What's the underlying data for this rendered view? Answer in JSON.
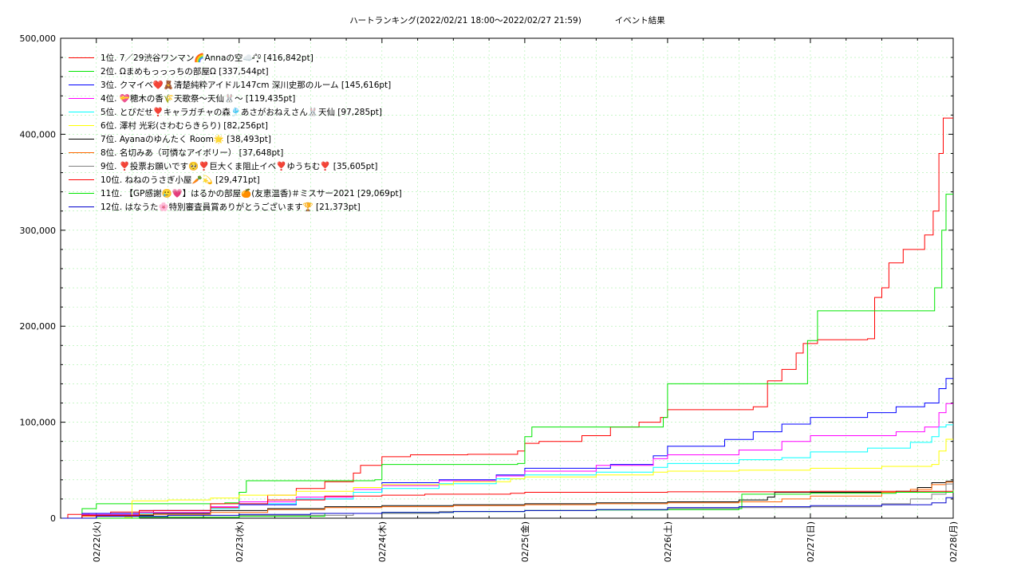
{
  "chart_data": {
    "type": "line",
    "title": "ハートランキング(2022/02/21 18:00〜2022/02/27 21:59)　　　　イベント結果",
    "ylim": [
      0,
      500000
    ],
    "y_ticks": [
      "500,000",
      "400,000",
      "300,000",
      "200,000",
      "100,000",
      "0"
    ],
    "y_tick_values": [
      500000,
      400000,
      300000,
      200000,
      100000,
      0
    ],
    "x_range_days": [
      21.75,
      28.0
    ],
    "x_ticks": [
      {
        "label": "02/22(火)",
        "day": 22
      },
      {
        "label": "02/23(水)",
        "day": 23
      },
      {
        "label": "02/24(木)",
        "day": 24
      },
      {
        "label": "02/25(金)",
        "day": 25
      },
      {
        "label": "02/26(土)",
        "day": 26
      },
      {
        "label": "02/27(日)",
        "day": 27
      },
      {
        "label": "02/28(月)",
        "day": 28
      }
    ],
    "grid": true,
    "legend_position": "top-left",
    "series": [
      {
        "name": "1位. 7／29渋谷ワンマン🌈Annaの空☁️ᵎ̵̵̵̵˚̩̩̥͙⁰̵ [416,842pt]",
        "color": "#ff0000",
        "points": [
          [
            21.76,
            0
          ],
          [
            21.8,
            4000
          ],
          [
            21.95,
            5000
          ],
          [
            22.1,
            6500
          ],
          [
            22.4,
            8000
          ],
          [
            22.8,
            11000
          ],
          [
            23.0,
            17000
          ],
          [
            23.2,
            24000
          ],
          [
            23.4,
            31000
          ],
          [
            23.6,
            38000
          ],
          [
            23.8,
            47000
          ],
          [
            23.85,
            55000
          ],
          [
            24.0,
            64000
          ],
          [
            24.2,
            66000
          ],
          [
            24.6,
            66500
          ],
          [
            24.95,
            70000
          ],
          [
            25.0,
            78000
          ],
          [
            25.1,
            80000
          ],
          [
            25.4,
            86000
          ],
          [
            25.6,
            95000
          ],
          [
            25.8,
            100000
          ],
          [
            25.95,
            105000
          ],
          [
            26.0,
            113000
          ],
          [
            26.6,
            116000
          ],
          [
            26.7,
            143000
          ],
          [
            26.8,
            155000
          ],
          [
            26.9,
            172000
          ],
          [
            26.95,
            182000
          ],
          [
            27.05,
            186000
          ],
          [
            27.4,
            187000
          ],
          [
            27.45,
            230000
          ],
          [
            27.5,
            240000
          ],
          [
            27.55,
            266000
          ],
          [
            27.65,
            280000
          ],
          [
            27.8,
            295000
          ],
          [
            27.86,
            320000
          ],
          [
            27.9,
            380000
          ],
          [
            27.93,
            416842
          ],
          [
            28.0,
            416842
          ]
        ]
      },
      {
        "name": "2位. Ωまめもっっっちの部屋Ω [337,544pt]",
        "color": "#00e600",
        "points": [
          [
            21.76,
            0
          ],
          [
            21.9,
            10000
          ],
          [
            22.0,
            15000
          ],
          [
            22.9,
            16000
          ],
          [
            23.0,
            27000
          ],
          [
            23.05,
            39000
          ],
          [
            23.4,
            39000
          ],
          [
            23.95,
            40000
          ],
          [
            24.0,
            56000
          ],
          [
            24.95,
            57000
          ],
          [
            25.0,
            85000
          ],
          [
            25.05,
            95000
          ],
          [
            25.9,
            95000
          ],
          [
            25.97,
            105000
          ],
          [
            26.0,
            140000
          ],
          [
            26.9,
            140000
          ],
          [
            26.98,
            185000
          ],
          [
            27.05,
            216000
          ],
          [
            27.85,
            216000
          ],
          [
            27.87,
            240000
          ],
          [
            27.92,
            300000
          ],
          [
            27.95,
            337544
          ],
          [
            28.0,
            337544
          ]
        ]
      },
      {
        "name": "3位. クマイベ❤️🧸清楚純粋アイドル147cm 深川史那のルーム [145,616pt]",
        "color": "#0000ff",
        "points": [
          [
            21.76,
            0
          ],
          [
            21.9,
            5000
          ],
          [
            22.3,
            8000
          ],
          [
            22.8,
            10000
          ],
          [
            23.0,
            14000
          ],
          [
            23.4,
            20000
          ],
          [
            23.8,
            27000
          ],
          [
            24.0,
            37000
          ],
          [
            24.4,
            40000
          ],
          [
            24.8,
            45000
          ],
          [
            25.0,
            52000
          ],
          [
            25.6,
            56000
          ],
          [
            25.9,
            65000
          ],
          [
            26.0,
            75000
          ],
          [
            26.4,
            82000
          ],
          [
            26.6,
            90000
          ],
          [
            26.8,
            98000
          ],
          [
            27.0,
            105000
          ],
          [
            27.4,
            110000
          ],
          [
            27.6,
            116000
          ],
          [
            27.8,
            120000
          ],
          [
            27.9,
            135000
          ],
          [
            27.95,
            145616
          ],
          [
            28.0,
            145616
          ]
        ]
      },
      {
        "name": "4位. 💝穂木の香🌾天歌祭〜天仙🐰〜 [119,435pt]",
        "color": "#ff00ff",
        "points": [
          [
            21.76,
            0
          ],
          [
            21.9,
            4000
          ],
          [
            22.3,
            6000
          ],
          [
            22.8,
            12000
          ],
          [
            23.0,
            17000
          ],
          [
            23.4,
            22000
          ],
          [
            23.8,
            30000
          ],
          [
            24.0,
            34000
          ],
          [
            24.4,
            39000
          ],
          [
            24.8,
            44000
          ],
          [
            25.0,
            49000
          ],
          [
            25.5,
            55000
          ],
          [
            25.9,
            62000
          ],
          [
            26.0,
            66000
          ],
          [
            26.5,
            71000
          ],
          [
            26.8,
            80000
          ],
          [
            27.0,
            86000
          ],
          [
            27.6,
            90000
          ],
          [
            27.8,
            95000
          ],
          [
            27.9,
            110000
          ],
          [
            27.95,
            119435
          ],
          [
            28.0,
            119435
          ]
        ]
      },
      {
        "name": "5位. とびだせ❣️キャラガチャの森🎐あさがおねえさん🐰天仙 [97,285pt]",
        "color": "#00ffff",
        "points": [
          [
            21.76,
            0
          ],
          [
            21.9,
            3000
          ],
          [
            22.3,
            5000
          ],
          [
            22.8,
            10000
          ],
          [
            23.0,
            15000
          ],
          [
            23.4,
            20000
          ],
          [
            23.8,
            27000
          ],
          [
            24.0,
            31000
          ],
          [
            24.4,
            36000
          ],
          [
            24.8,
            41000
          ],
          [
            25.0,
            45000
          ],
          [
            25.5,
            48000
          ],
          [
            25.9,
            53000
          ],
          [
            26.0,
            57000
          ],
          [
            26.5,
            61000
          ],
          [
            26.8,
            63000
          ],
          [
            27.0,
            69000
          ],
          [
            27.4,
            73000
          ],
          [
            27.7,
            79000
          ],
          [
            27.85,
            85000
          ],
          [
            27.9,
            95000
          ],
          [
            27.95,
            97285
          ],
          [
            28.0,
            97285
          ]
        ]
      },
      {
        "name": "6位. 澤村 光彩(さわむらきらり) [82,256pt]",
        "color": "#ffff00",
        "points": [
          [
            21.76,
            0
          ],
          [
            22.2,
            1000
          ],
          [
            22.25,
            18000
          ],
          [
            22.5,
            19000
          ],
          [
            22.8,
            21000
          ],
          [
            23.0,
            24000
          ],
          [
            23.4,
            28000
          ],
          [
            23.8,
            32000
          ],
          [
            24.0,
            35000
          ],
          [
            24.5,
            38000
          ],
          [
            24.9,
            41000
          ],
          [
            25.0,
            43000
          ],
          [
            25.5,
            45000
          ],
          [
            25.9,
            48000
          ],
          [
            26.0,
            49000
          ],
          [
            26.5,
            50000
          ],
          [
            27.0,
            52000
          ],
          [
            27.5,
            54000
          ],
          [
            27.85,
            56000
          ],
          [
            27.9,
            70000
          ],
          [
            27.95,
            82256
          ],
          [
            28.0,
            82256
          ]
        ]
      },
      {
        "name": "7位. Ayanaのゆんたく Room🌟 [38,493pt]",
        "color": "#000000",
        "points": [
          [
            21.76,
            0
          ],
          [
            21.9,
            3000
          ],
          [
            22.4,
            5000
          ],
          [
            22.8,
            8000
          ],
          [
            23.2,
            10000
          ],
          [
            23.6,
            12000
          ],
          [
            24.0,
            13000
          ],
          [
            24.5,
            14000
          ],
          [
            25.0,
            15000
          ],
          [
            25.5,
            16000
          ],
          [
            26.0,
            17000
          ],
          [
            26.5,
            19000
          ],
          [
            26.7,
            22000
          ],
          [
            26.75,
            27000
          ],
          [
            27.0,
            27000
          ],
          [
            27.6,
            28000
          ],
          [
            27.75,
            32000
          ],
          [
            27.85,
            37000
          ],
          [
            27.95,
            38493
          ],
          [
            28.0,
            38493
          ]
        ]
      },
      {
        "name": "8位. 名切みあ（可憐なアイボリー） [37,648pt]",
        "color": "#ff6600",
        "points": [
          [
            21.76,
            0
          ],
          [
            21.9,
            2000
          ],
          [
            22.3,
            4000
          ],
          [
            22.8,
            6000
          ],
          [
            23.2,
            9000
          ],
          [
            23.6,
            11000
          ],
          [
            24.0,
            12000
          ],
          [
            24.5,
            13000
          ],
          [
            25.0,
            14000
          ],
          [
            25.5,
            15000
          ],
          [
            26.0,
            16000
          ],
          [
            26.5,
            17000
          ],
          [
            26.8,
            20000
          ],
          [
            27.0,
            23000
          ],
          [
            27.5,
            27000
          ],
          [
            27.7,
            30000
          ],
          [
            27.85,
            35000
          ],
          [
            27.95,
            37648
          ],
          [
            28.0,
            37648
          ]
        ]
      },
      {
        "name": "9位. ❣️投票お願いです🥺❣️巨大くま阻止イベ❣️ゆうちむ❣️ [35,605pt]",
        "color": "#808080",
        "points": [
          [
            21.76,
            0
          ],
          [
            22.3,
            1000
          ],
          [
            23.0,
            3000
          ],
          [
            23.8,
            5000
          ],
          [
            24.4,
            7000
          ],
          [
            25.0,
            8000
          ],
          [
            25.5,
            9000
          ],
          [
            26.0,
            10000
          ],
          [
            26.5,
            11000
          ],
          [
            27.0,
            12000
          ],
          [
            27.5,
            15000
          ],
          [
            27.7,
            20000
          ],
          [
            27.85,
            25000
          ],
          [
            27.95,
            35605
          ],
          [
            28.0,
            35605
          ]
        ]
      },
      {
        "name": "10位. ねねのうさぎ小屋🥕💫 [29,471pt]",
        "color": "#ff0000",
        "points": [
          [
            21.76,
            0
          ],
          [
            21.9,
            3000
          ],
          [
            22.3,
            8000
          ],
          [
            22.8,
            15000
          ],
          [
            23.2,
            19000
          ],
          [
            23.6,
            23000
          ],
          [
            24.0,
            24000
          ],
          [
            24.3,
            25000
          ],
          [
            24.9,
            26000
          ],
          [
            25.0,
            27000
          ],
          [
            26.0,
            27500
          ],
          [
            27.0,
            28000
          ],
          [
            28.0,
            29471
          ]
        ]
      },
      {
        "name": "11位. 【GP感謝🥲💗】はるかの部屋🍊(友恵温香)＃ミスサー2021 [29,069pt]",
        "color": "#00e600",
        "points": [
          [
            21.76,
            0
          ],
          [
            22.3,
            1000
          ],
          [
            23.0,
            2000
          ],
          [
            23.6,
            5000
          ],
          [
            24.0,
            6000
          ],
          [
            24.5,
            7000
          ],
          [
            25.0,
            8000
          ],
          [
            25.5,
            8500
          ],
          [
            26.0,
            9000
          ],
          [
            26.5,
            10000
          ],
          [
            26.52,
            25000
          ],
          [
            27.0,
            26000
          ],
          [
            27.6,
            27000
          ],
          [
            28.0,
            29069
          ]
        ]
      },
      {
        "name": "12位. はなうた🌸特別審査員賞ありがとうございます🏆 [21,373pt]",
        "color": "#0000cc",
        "points": [
          [
            21.76,
            0
          ],
          [
            22.0,
            2000
          ],
          [
            22.5,
            3000
          ],
          [
            23.0,
            4000
          ],
          [
            23.5,
            5000
          ],
          [
            24.0,
            6000
          ],
          [
            24.5,
            7000
          ],
          [
            25.0,
            8000
          ],
          [
            25.5,
            9000
          ],
          [
            26.0,
            11000
          ],
          [
            26.5,
            12000
          ],
          [
            27.0,
            13000
          ],
          [
            27.5,
            14000
          ],
          [
            27.85,
            16000
          ],
          [
            27.95,
            21373
          ],
          [
            28.0,
            21373
          ]
        ]
      }
    ]
  }
}
